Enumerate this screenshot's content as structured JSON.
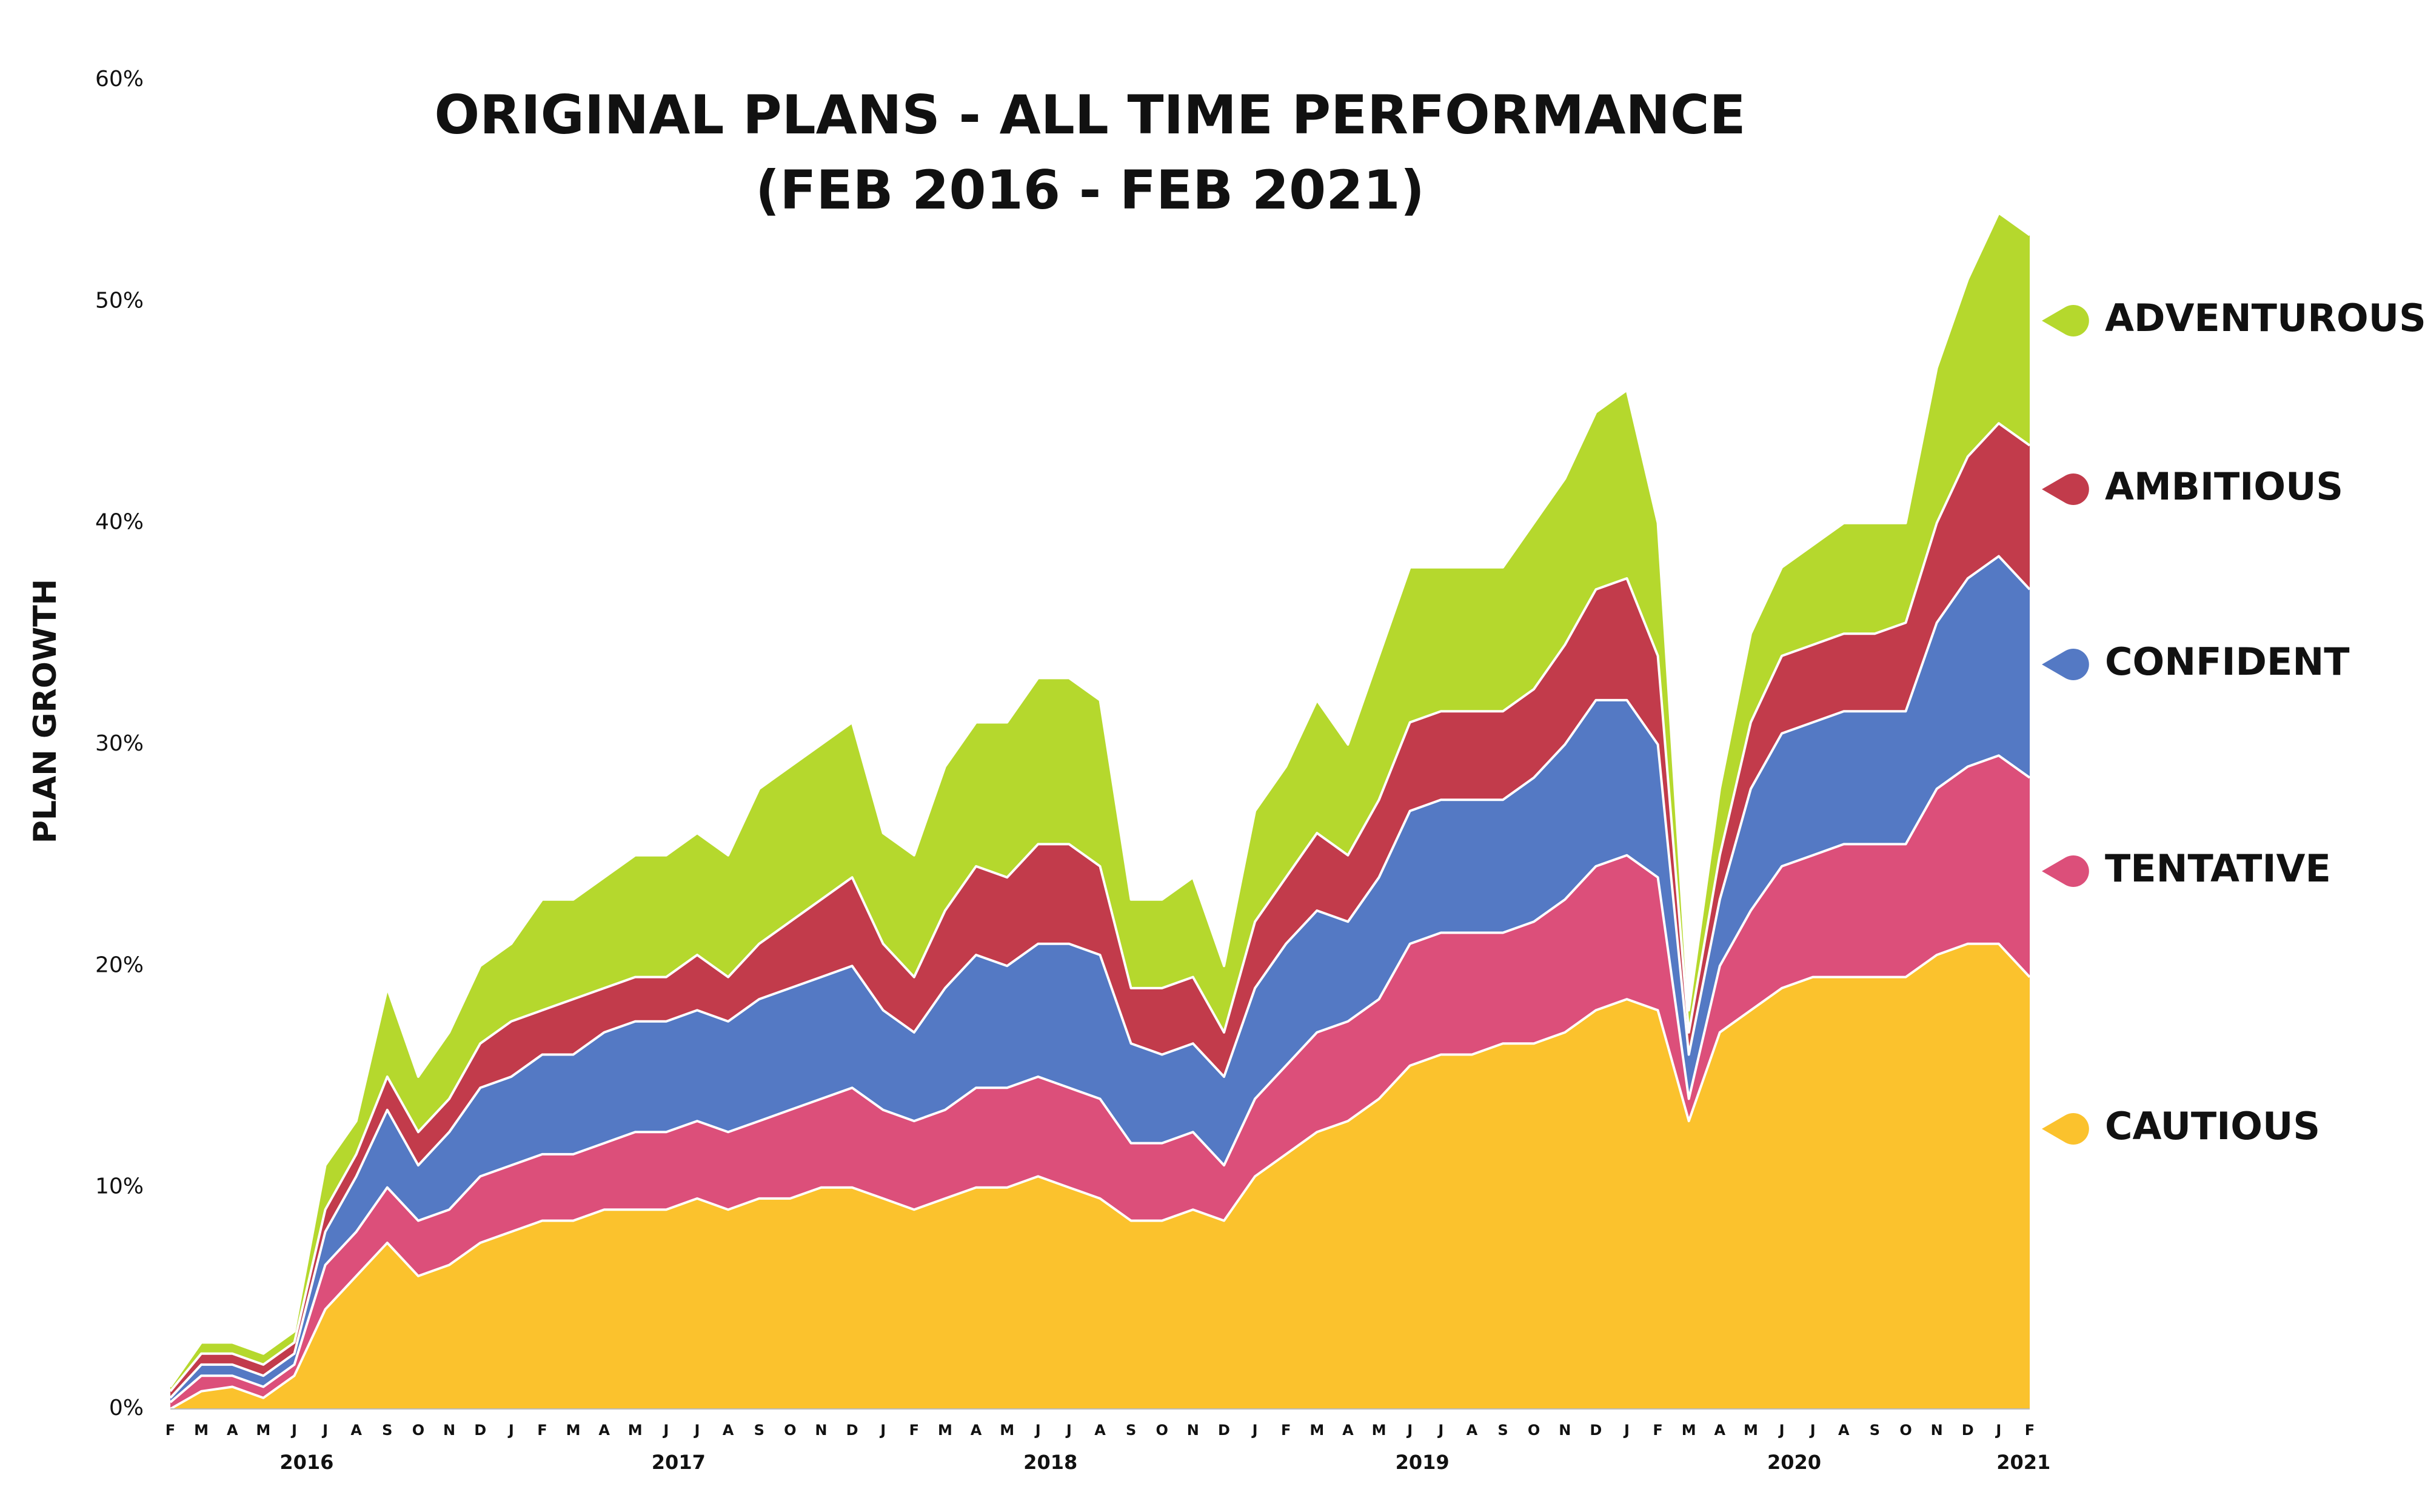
{
  "chart_data": {
    "type": "area",
    "title": "ORIGINAL PLANS - ALL TIME PERFORMANCE",
    "subtitle": "(FEB 2016 - FEB 2021)",
    "y_label": "PLAN GROWTH",
    "categories": [
      "F",
      "M",
      "A",
      "M",
      "J",
      "J",
      "A",
      "S",
      "O",
      "N",
      "D",
      "J",
      "F",
      "M",
      "A",
      "M",
      "J",
      "J",
      "A",
      "S",
      "O",
      "N",
      "D",
      "J",
      "F",
      "M",
      "A",
      "M",
      "J",
      "J",
      "A",
      "S",
      "O",
      "N",
      "D",
      "J",
      "F",
      "M",
      "A",
      "M",
      "J",
      "J",
      "A",
      "S",
      "O",
      "N",
      "D",
      "J",
      "F",
      "M",
      "A",
      "M",
      "J",
      "J",
      "A",
      "S",
      "O",
      "N",
      "D",
      "J",
      "F"
    ],
    "years": [
      "2016",
      "2017",
      "2018",
      "2019",
      "2020",
      "2021"
    ],
    "ylim": [
      0,
      60
    ],
    "yticks": [
      {
        "value": 0,
        "label": "0%"
      },
      {
        "value": 10,
        "label": "10%"
      },
      {
        "value": 20,
        "label": "20%"
      },
      {
        "value": 30,
        "label": "30%"
      },
      {
        "value": 40,
        "label": "40%"
      },
      {
        "value": 50,
        "label": "50%"
      },
      {
        "value": 60,
        "label": "60%"
      }
    ],
    "grid": false,
    "series": [
      {
        "name": "ADVENTUROUS",
        "color": "#b5d82d",
        "values": [
          1,
          3,
          3,
          2.5,
          3.5,
          11,
          13,
          19,
          15,
          17,
          20,
          21,
          23,
          23,
          24,
          25,
          25,
          26,
          25,
          28,
          29,
          30,
          31,
          26,
          25,
          29,
          31,
          31,
          33,
          33,
          32,
          23,
          23,
          24,
          20,
          27,
          29,
          32,
          30,
          34,
          38,
          38,
          38,
          38,
          40,
          42,
          45,
          46,
          40,
          18,
          28,
          35,
          38,
          39,
          40,
          40,
          40,
          47,
          51,
          54,
          53
        ]
      },
      {
        "name": "AMBITIOUS",
        "color": "#c23b4b",
        "values": [
          0.8,
          2.5,
          2.5,
          2,
          3,
          9,
          11.5,
          15,
          12.5,
          14,
          16.5,
          17.5,
          18,
          18.5,
          19,
          19.5,
          19.5,
          20.5,
          19.5,
          21,
          22,
          23,
          24,
          21,
          19.5,
          22.5,
          24.5,
          24,
          25.5,
          25.5,
          24.5,
          19,
          19,
          19.5,
          17,
          22,
          24,
          26,
          25,
          27.5,
          31,
          31.5,
          31.5,
          31.5,
          32.5,
          34.5,
          37,
          37.5,
          34,
          17,
          25,
          31,
          34,
          34.5,
          35,
          35,
          35.5,
          40,
          43,
          44.5,
          43.5
        ]
      },
      {
        "name": "CONFIDENT",
        "color": "#5479c4",
        "values": [
          0.5,
          2,
          2,
          1.5,
          2.5,
          8,
          10.5,
          13.5,
          11,
          12.5,
          14.5,
          15,
          16,
          16,
          17,
          17.5,
          17.5,
          18,
          17.5,
          18.5,
          19,
          19.5,
          20,
          18,
          17,
          19,
          20.5,
          20,
          21,
          21,
          20.5,
          16.5,
          16,
          16.5,
          15,
          19,
          21,
          22.5,
          22,
          24,
          27,
          27.5,
          27.5,
          27.5,
          28.5,
          30,
          32,
          32,
          30,
          16,
          23,
          28,
          30.5,
          31,
          31.5,
          31.5,
          31.5,
          35.5,
          37.5,
          38.5,
          37
        ]
      },
      {
        "name": "TENTATIVE",
        "color": "#dc4f7a",
        "values": [
          0.3,
          1.5,
          1.5,
          1,
          2,
          6.5,
          8,
          10,
          8.5,
          9,
          10.5,
          11,
          11.5,
          11.5,
          12,
          12.5,
          12.5,
          13,
          12.5,
          13,
          13.5,
          14,
          14.5,
          13.5,
          13,
          13.5,
          14.5,
          14.5,
          15,
          14.5,
          14,
          12,
          12,
          12.5,
          11,
          14,
          15.5,
          17,
          17.5,
          18.5,
          21,
          21.5,
          21.5,
          21.5,
          22,
          23,
          24.5,
          25,
          24,
          14,
          20,
          22.5,
          24.5,
          25,
          25.5,
          25.5,
          25.5,
          28,
          29,
          29.5,
          28.5
        ]
      },
      {
        "name": "CAUTIOUS",
        "color": "#fbc22d",
        "values": [
          0,
          0.8,
          1,
          0.5,
          1.5,
          4.5,
          6,
          7.5,
          6,
          6.5,
          7.5,
          8,
          8.5,
          8.5,
          9,
          9,
          9,
          9.5,
          9,
          9.5,
          9.5,
          10,
          10,
          9.5,
          9,
          9.5,
          10,
          10,
          10.5,
          10,
          9.5,
          8.5,
          8.5,
          9,
          8.5,
          10.5,
          11.5,
          12.5,
          13,
          14,
          15.5,
          16,
          16,
          16.5,
          16.5,
          17,
          18,
          18.5,
          18,
          13,
          17,
          18,
          19,
          19.5,
          19.5,
          19.5,
          19.5,
          20.5,
          21,
          21,
          19.5
        ]
      }
    ]
  }
}
